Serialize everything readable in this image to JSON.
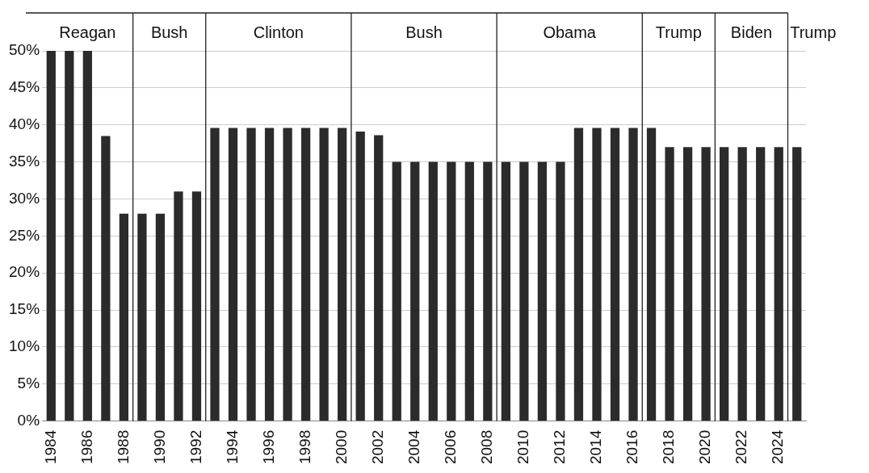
{
  "chart_data": {
    "type": "bar",
    "x": [
      1984,
      1985,
      1986,
      1987,
      1988,
      1989,
      1990,
      1991,
      1992,
      1993,
      1994,
      1995,
      1996,
      1997,
      1998,
      1999,
      2000,
      2001,
      2002,
      2003,
      2004,
      2005,
      2006,
      2007,
      2008,
      2009,
      2010,
      2011,
      2012,
      2013,
      2014,
      2015,
      2016,
      2017,
      2018,
      2019,
      2020,
      2021,
      2022,
      2023,
      2024,
      2025
    ],
    "values": [
      50,
      50,
      50,
      38.5,
      28,
      28,
      28,
      31,
      31,
      39.6,
      39.6,
      39.6,
      39.6,
      39.6,
      39.6,
      39.6,
      39.6,
      39.1,
      38.6,
      35,
      35,
      35,
      35,
      35,
      35,
      35,
      35,
      35,
      35,
      39.6,
      39.6,
      39.6,
      39.6,
      39.6,
      37,
      37,
      37,
      37,
      37,
      37,
      37,
      37
    ],
    "color": "#2b2b2b",
    "xlim": [
      1983.5,
      2025.5
    ],
    "xticks": [
      1984,
      1986,
      1988,
      1990,
      1992,
      1994,
      1996,
      1998,
      2000,
      2002,
      2004,
      2006,
      2008,
      2010,
      2012,
      2014,
      2016,
      2018,
      2020,
      2022,
      2024
    ],
    "ylim": [
      0,
      50
    ],
    "yticks": [
      {
        "value": 0,
        "label": "0%"
      },
      {
        "value": 5,
        "label": "5%"
      },
      {
        "value": 10,
        "label": "10%"
      },
      {
        "value": 15,
        "label": "15%"
      },
      {
        "value": 20,
        "label": "20%"
      },
      {
        "value": 25,
        "label": "25%"
      },
      {
        "value": 30,
        "label": "30%"
      },
      {
        "value": 35,
        "label": "35%"
      },
      {
        "value": 40,
        "label": "40%"
      },
      {
        "value": 45,
        "label": "45%"
      },
      {
        "value": 50,
        "label": "50%"
      }
    ],
    "ref_lines": [
      {
        "axis": "x",
        "value": 1988.5
      },
      {
        "axis": "x",
        "value": 1992.5
      },
      {
        "axis": "x",
        "value": 2000.5
      },
      {
        "axis": "x",
        "value": 2008.5
      },
      {
        "axis": "x",
        "value": 2016.5
      },
      {
        "axis": "x",
        "value": 2020.5
      },
      {
        "axis": "x",
        "value": 2024.5
      }
    ],
    "annotations": [
      "Reagan",
      "Bush",
      "Clinton",
      "Bush",
      "Obama",
      "Trump",
      "Biden",
      "Trump"
    ],
    "grid": "y",
    "legend": false
  }
}
